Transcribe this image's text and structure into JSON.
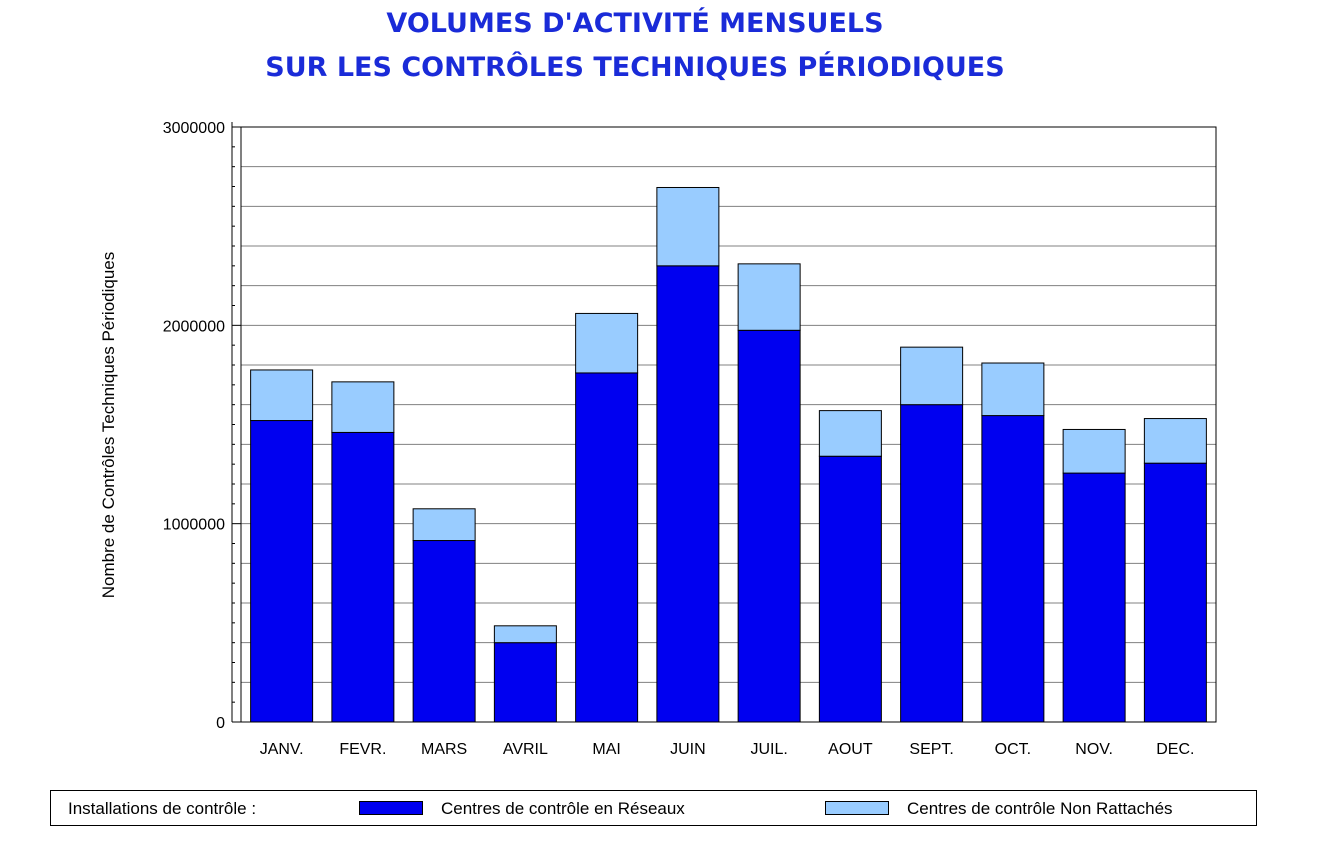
{
  "chart_data": {
    "type": "bar",
    "stacked": true,
    "title": "VOLUMES D'ACTIVITÉ MENSUELS",
    "subtitle": "SUR LES CONTRÔLES TECHNIQUES PÉRIODIQUES",
    "xlabel": "",
    "ylabel": "Nombre de Contrôles Techniques Périodiques",
    "ylim": [
      0,
      3000000
    ],
    "yticks": [
      "0",
      "1000000",
      "2000000",
      "3000000"
    ],
    "yticks_values": [
      0,
      1000000,
      2000000,
      3000000
    ],
    "grid": true,
    "categories": [
      "JANV.",
      "FEVR.",
      "MARS",
      "AVRIL",
      "MAI",
      "JUIN",
      "JUIL.",
      "AOUT",
      "SEPT.",
      "OCT.",
      "NOV.",
      "DEC."
    ],
    "series": [
      {
        "name": "Centres de contrôle en Réseaux",
        "color": "#0000f0",
        "values": [
          1520000,
          1460000,
          915000,
          400000,
          1760000,
          2300000,
          1975000,
          1340000,
          1600000,
          1545000,
          1255000,
          1305000
        ]
      },
      {
        "name": "Centres de contrôle Non Rattachés",
        "color": "#99ccff",
        "values": [
          255000,
          255000,
          160000,
          85000,
          300000,
          395000,
          335000,
          230000,
          290000,
          265000,
          220000,
          225000
        ]
      }
    ],
    "legend": {
      "label": "Installations de contrôle :",
      "placement": "bottom"
    }
  }
}
